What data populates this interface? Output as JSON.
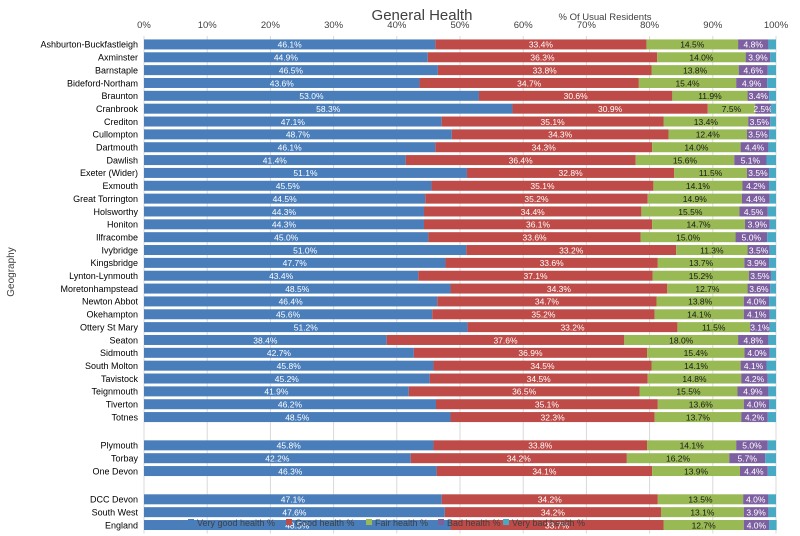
{
  "chart_data": {
    "type": "bar",
    "orientation": "horizontal",
    "stacked": true,
    "title": "General Health",
    "xlabel": "% Of Usual Residents",
    "ylabel": "Geography",
    "xlim": [
      0,
      100
    ],
    "x_ticks": [
      "0%",
      "10%",
      "20%",
      "30%",
      "40%",
      "50%",
      "60%",
      "70%",
      "80%",
      "90%",
      "100%"
    ],
    "legend_position": "bottom",
    "groups": [
      [
        "Ashburton-Buckfastleigh",
        "Axminster",
        "Barnstaple",
        "Bideford-Northam",
        "Braunton",
        "Cranbrook",
        "Crediton",
        "Cullompton",
        "Dartmouth",
        "Dawlish",
        "Exeter (Wider)",
        "Exmouth",
        "Great Torrington",
        "Holsworthy",
        "Honiton",
        "Ilfracombe",
        "Ivybridge",
        "Kingsbridge",
        "Lynton-Lynmouth",
        "Moretonhampstead",
        "Newton Abbot",
        "Okehampton",
        "Ottery St Mary",
        "Seaton",
        "Sidmouth",
        "South Molton",
        "Tavistock",
        "Teignmouth",
        "Tiverton",
        "Totnes"
      ],
      [
        "Plymouth",
        "Torbay",
        "One Devon"
      ],
      [
        "DCC Devon",
        "South West",
        "England"
      ]
    ],
    "categories": [
      "Ashburton-Buckfastleigh",
      "Axminster",
      "Barnstaple",
      "Bideford-Northam",
      "Braunton",
      "Cranbrook",
      "Crediton",
      "Cullompton",
      "Dartmouth",
      "Dawlish",
      "Exeter (Wider)",
      "Exmouth",
      "Great Torrington",
      "Holsworthy",
      "Honiton",
      "Ilfracombe",
      "Ivybridge",
      "Kingsbridge",
      "Lynton-Lynmouth",
      "Moretonhampstead",
      "Newton Abbot",
      "Okehampton",
      "Ottery St Mary",
      "Seaton",
      "Sidmouth",
      "South Molton",
      "Tavistock",
      "Teignmouth",
      "Tiverton",
      "Totnes",
      "Plymouth",
      "Torbay",
      "One Devon",
      "DCC Devon",
      "South West",
      "England"
    ],
    "series": [
      {
        "name": "Very good health %",
        "color": "#4a7ebb",
        "values": [
          46.1,
          44.9,
          46.5,
          43.6,
          53.0,
          58.3,
          47.1,
          48.7,
          46.1,
          41.4,
          51.1,
          45.5,
          44.5,
          44.3,
          44.3,
          45.0,
          51.0,
          47.7,
          43.4,
          48.5,
          46.4,
          45.6,
          51.2,
          38.4,
          42.7,
          45.8,
          45.2,
          41.9,
          46.2,
          48.5,
          45.8,
          42.2,
          46.3,
          47.1,
          47.6,
          48.5
        ]
      },
      {
        "name": "Good health %",
        "color": "#be4b48",
        "values": [
          33.4,
          36.3,
          33.8,
          34.7,
          30.6,
          30.9,
          35.1,
          34.3,
          34.3,
          36.4,
          32.8,
          35.1,
          35.2,
          34.4,
          36.1,
          33.6,
          33.2,
          33.6,
          37.1,
          34.3,
          34.7,
          35.2,
          33.2,
          37.6,
          36.9,
          34.5,
          34.5,
          36.5,
          35.1,
          32.3,
          33.8,
          34.2,
          34.1,
          34.2,
          34.2,
          33.7
        ]
      },
      {
        "name": "Fair health %",
        "color": "#98b954",
        "values": [
          14.5,
          14.0,
          13.8,
          15.4,
          11.9,
          7.5,
          13.4,
          12.4,
          14.0,
          15.6,
          11.5,
          14.1,
          14.9,
          15.5,
          14.7,
          15.0,
          11.3,
          13.7,
          15.2,
          12.7,
          13.8,
          14.1,
          11.5,
          18.0,
          15.4,
          14.1,
          14.8,
          15.5,
          13.6,
          13.7,
          14.1,
          16.2,
          13.9,
          13.5,
          13.1,
          12.7
        ]
      },
      {
        "name": "Bad health %",
        "color": "#7d60a0",
        "values": [
          4.8,
          3.9,
          4.6,
          4.9,
          3.4,
          2.5,
          3.5,
          3.5,
          4.4,
          5.1,
          3.5,
          4.2,
          4.4,
          4.5,
          3.9,
          5.0,
          3.5,
          3.9,
          3.5,
          3.6,
          4.0,
          4.1,
          3.1,
          4.8,
          4.0,
          4.1,
          4.2,
          4.9,
          4.0,
          4.2,
          5.0,
          5.7,
          4.4,
          4.0,
          3.9,
          4.0
        ]
      },
      {
        "name": "Very bad health %",
        "color": "#46aac5",
        "values": [
          1.2,
          0.9,
          1.3,
          1.4,
          1.1,
          0.8,
          0.9,
          1.1,
          1.2,
          1.5,
          1.1,
          1.1,
          1.0,
          1.3,
          1.0,
          1.4,
          1.0,
          1.1,
          0.8,
          0.9,
          1.1,
          1.0,
          1.0,
          1.2,
          1.0,
          1.5,
          1.3,
          1.2,
          1.1,
          1.3,
          1.3,
          1.7,
          1.3,
          1.2,
          1.2,
          1.2
        ]
      }
    ],
    "labeled_series": [
      0,
      1,
      2,
      3
    ]
  }
}
